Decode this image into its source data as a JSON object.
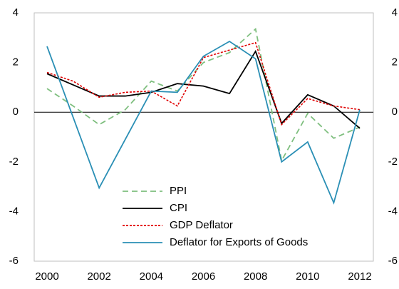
{
  "chart_data": {
    "type": "line",
    "x": [
      2000,
      2001,
      2002,
      2003,
      2004,
      2005,
      2006,
      2007,
      2008,
      2009,
      2010,
      2011,
      2012
    ],
    "xlim": [
      2000,
      2012
    ],
    "xticks": [
      2000,
      2002,
      2004,
      2006,
      2008,
      2010,
      2012
    ],
    "ylim": [
      -6,
      4
    ],
    "yticks": [
      -6,
      -4,
      -2,
      0,
      2,
      4
    ],
    "y2lim": [
      -6,
      4
    ],
    "y2ticks": [
      -6,
      -4,
      -2,
      0,
      2,
      4
    ],
    "series": [
      {
        "name": "PPI",
        "color": "#7fbf7f",
        "dash": "8,5",
        "values": [
          0.95,
          0.25,
          -0.5,
          0.1,
          1.25,
          0.85,
          2.0,
          2.4,
          3.35,
          -1.95,
          -0.05,
          -1.05,
          -0.6
        ]
      },
      {
        "name": "CPI",
        "color": "#000000",
        "dash": "none",
        "values": [
          1.55,
          1.1,
          0.65,
          0.65,
          0.8,
          1.15,
          1.05,
          0.75,
          2.45,
          -0.45,
          0.7,
          0.25,
          -0.65
        ]
      },
      {
        "name": "GDP Deflator",
        "color": "#e00000",
        "dash": "3,2",
        "values": [
          1.6,
          1.25,
          0.6,
          0.8,
          0.85,
          0.25,
          2.2,
          2.5,
          2.8,
          -0.5,
          0.55,
          0.25,
          0.1
        ]
      },
      {
        "name": "Deflator for Exports of Goods",
        "color": "#2a8fb5",
        "dash": "none",
        "values": [
          2.65,
          -0.2,
          -3.05,
          -1.1,
          0.85,
          0.8,
          2.25,
          2.85,
          2.15,
          -2.0,
          -1.2,
          -3.65,
          0.1
        ]
      }
    ]
  }
}
